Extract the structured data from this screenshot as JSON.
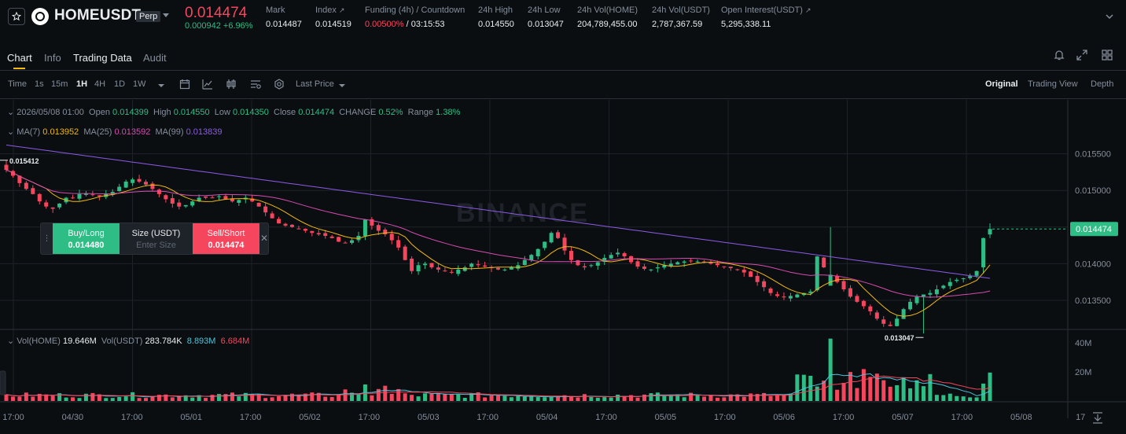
{
  "header": {
    "symbol": "HOMEUSDT",
    "badge": "Perp",
    "last_price": "0.014474",
    "change": "0.000942 +6.96%",
    "stats": [
      {
        "label": "Mark",
        "value": "0.014487"
      },
      {
        "label": "Index",
        "value": "0.014519"
      },
      {
        "label": "Funding (4h) / Countdown",
        "value_red": "0.00500%",
        "value": " / 03:15:53"
      },
      {
        "label": "24h High",
        "value": "0.014550"
      },
      {
        "label": "24h Low",
        "value": "0.013047"
      },
      {
        "label": "24h Vol(HOME)",
        "value": "204,789,455.00"
      },
      {
        "label": "24h Vol(USDT)",
        "value": "2,787,367.59"
      },
      {
        "label": "Open Interest(USDT)",
        "value": "5,295,338.11"
      }
    ]
  },
  "tabs": [
    "Chart",
    "Info",
    "Trading Data",
    "Audit"
  ],
  "toolbar": {
    "intervals": [
      "Time",
      "1s",
      "15m",
      "1H",
      "4H",
      "1D",
      "1W"
    ],
    "active_interval": "1H",
    "price_type": "Last Price",
    "views": [
      "Original",
      "Trading View",
      "Depth"
    ],
    "active_view": "Original"
  },
  "legend": {
    "date": "2026/05/08 01:00",
    "open_label": "Open",
    "open": "0.014399",
    "high_label": "High",
    "high": "0.014550",
    "low_label": "Low",
    "low": "0.014350",
    "close_label": "Close",
    "close": "0.014474",
    "change_label": "CHANGE",
    "change": "0.52%",
    "range_label": "Range",
    "range": "1.38%",
    "ma7_label": "MA(7)",
    "ma7": "0.013952",
    "ma25_label": "MA(25)",
    "ma25": "0.013592",
    "ma99_label": "MA(99)",
    "ma99": "0.013839",
    "vol_home_label": "Vol(HOME)",
    "vol_home": "19.646M",
    "vol_usdt_label": "Vol(USDT)",
    "vol_usdt": "283.784K",
    "vol_ma1": "8.893M",
    "vol_ma2": "6.684M"
  },
  "trade_panel": {
    "buy_label": "Buy/Long",
    "buy_price": "0.014480",
    "size_label": "Size (USDT)",
    "size_placeholder": "Enter Size",
    "sell_label": "Sell/Short",
    "sell_price": "0.014474"
  },
  "colors": {
    "up": "#2ebd85",
    "down": "#f6465d",
    "ma7": "#f0b90b",
    "ma25": "#d64bb0",
    "ma99": "#8c5ae8",
    "bg": "#0b0e11"
  },
  "chart_data": {
    "type": "candlestick",
    "y_ticks": [
      "0.015500",
      "0.015000",
      "0.014500",
      "0.014000",
      "0.013500"
    ],
    "y_range": [
      0.0131,
      0.0157
    ],
    "vol_ticks": [
      "40M",
      "20M"
    ],
    "vol_range": [
      0,
      45
    ],
    "x_labels": [
      "17:00",
      "04/30",
      "17:00",
      "05/01",
      "17:00",
      "05/02",
      "17:00",
      "05/03",
      "17:00",
      "05/04",
      "17:00",
      "05/05",
      "17:00",
      "05/06",
      "17:00",
      "05/07",
      "17:00",
      "05/08",
      "17"
    ],
    "high_marker": "0.015412",
    "low_marker": "0.013047",
    "price_tag": "0.014474",
    "watermark": "BINANCE",
    "closes": [
      0.01528,
      0.0152,
      0.0151,
      0.01502,
      0.01495,
      0.01485,
      0.01478,
      0.01475,
      0.01482,
      0.0149,
      0.0149,
      0.01495,
      0.01496,
      0.01494,
      0.01492,
      0.01495,
      0.01498,
      0.01505,
      0.01512,
      0.01515,
      0.01512,
      0.01508,
      0.01502,
      0.01495,
      0.01488,
      0.01482,
      0.01478,
      0.0148,
      0.01485,
      0.0149,
      0.0149,
      0.0149,
      0.01492,
      0.01488,
      0.01485,
      0.01487,
      0.0149,
      0.01485,
      0.01478,
      0.0147,
      0.01462,
      0.01455,
      0.01452,
      0.0145,
      0.01448,
      0.01445,
      0.01442,
      0.0144,
      0.01438,
      0.01435,
      0.0143,
      0.01428,
      0.01432,
      0.01438,
      0.0146,
      0.01452,
      0.01445,
      0.0144,
      0.01432,
      0.01422,
      0.01405,
      0.0139,
      0.01398,
      0.014,
      0.01395,
      0.01392,
      0.0139,
      0.01388,
      0.01392,
      0.01395,
      0.014,
      0.01398,
      0.01396,
      0.01394,
      0.01392,
      0.01392,
      0.01395,
      0.01398,
      0.01405,
      0.01412,
      0.0142,
      0.0143,
      0.01442,
      0.01435,
      0.01418,
      0.01405,
      0.01398,
      0.01395,
      0.01398,
      0.01402,
      0.01408,
      0.01412,
      0.01415,
      0.0141,
      0.01402,
      0.01396,
      0.01393,
      0.01392,
      0.01395,
      0.01398,
      0.014,
      0.01402,
      0.01403,
      0.01404,
      0.01403,
      0.01402,
      0.014,
      0.01398,
      0.01396,
      0.01394,
      0.01392,
      0.01388,
      0.01382,
      0.01375,
      0.01368,
      0.0136,
      0.01356,
      0.01354,
      0.01356,
      0.01358,
      0.0136,
      0.01362,
      0.0141,
      0.01395,
      0.01385,
      0.01375,
      0.01365,
      0.01355,
      0.01348,
      0.01342,
      0.01335,
      0.01325,
      0.01318,
      0.01315,
      0.01325,
      0.01338,
      0.01348,
      0.01355,
      0.01358,
      0.0136,
      0.01365,
      0.0137,
      0.01375,
      0.01378,
      0.0138,
      0.01383,
      0.0139,
      0.01435,
      0.014474
    ]
  }
}
